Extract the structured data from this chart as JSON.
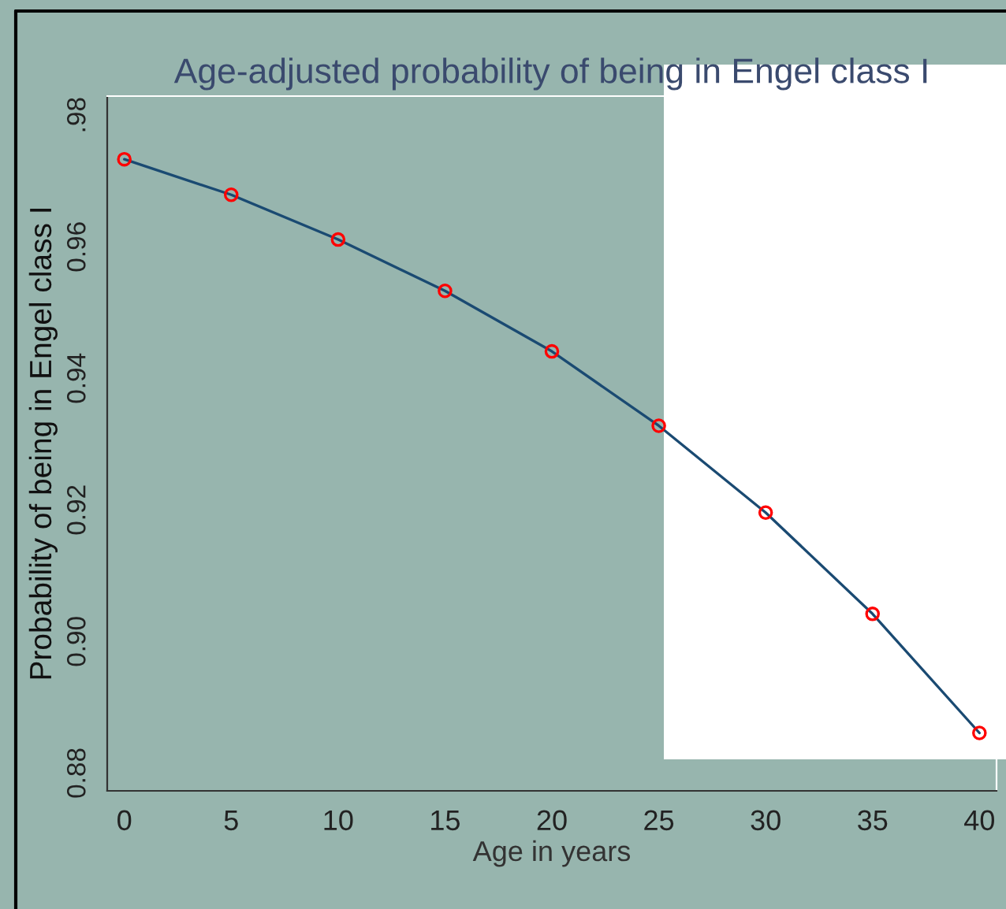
{
  "chart_data": {
    "type": "line",
    "title": "Age-adjusted probability of being in Engel class I",
    "xlabel": "Age in years",
    "ylabel": "Probability of being in Engel class I",
    "x": [
      0,
      5,
      10,
      15,
      20,
      25,
      30,
      35,
      40
    ],
    "series": [
      {
        "color": "#1a4a72",
        "values": [
          0.9733,
          0.9679,
          0.9611,
          0.9533,
          0.9441,
          0.9328,
          0.9196,
          0.9042,
          0.8861
        ]
      }
    ],
    "marker": "circle",
    "line_style": "solid",
    "grid": false,
    "xlim": [
      -0.8,
      40.8
    ],
    "xticks": [
      0,
      5,
      10,
      15,
      20,
      25,
      30,
      35,
      40
    ],
    "ylim": [
      0.8773,
      0.9829
    ],
    "yticks": [
      {
        "value": 0.88,
        "label": "0.88"
      },
      {
        "value": 0.9,
        "label": "0.90"
      },
      {
        "value": 0.92,
        "label": "0.92"
      },
      {
        "value": 0.94,
        "label": "0.94"
      },
      {
        "value": 0.96,
        "label": "0.96"
      },
      {
        "value": 0.98,
        "label": ".98"
      }
    ]
  }
}
